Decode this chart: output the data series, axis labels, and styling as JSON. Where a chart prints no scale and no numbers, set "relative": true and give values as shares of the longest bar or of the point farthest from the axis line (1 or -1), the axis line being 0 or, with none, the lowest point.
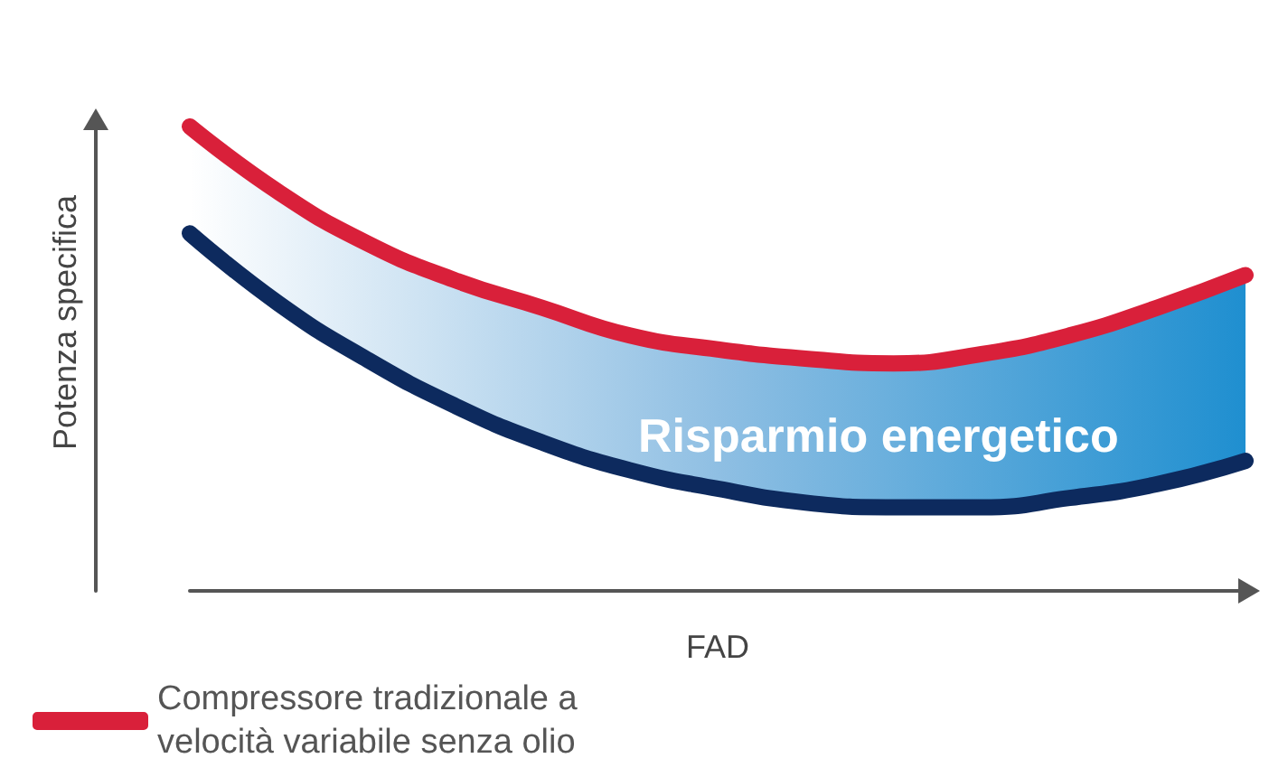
{
  "chart_data": {
    "type": "line",
    "relative": true,
    "xlabel": "FAD",
    "ylabel": "Potenza specifica",
    "categories": [
      null,
      null,
      null,
      null,
      null,
      null,
      null,
      null,
      null,
      null,
      null,
      null,
      null
    ],
    "series": [
      {
        "name": "Compressore tradizionale a velocità variabile senza olio",
        "color": "#d9203a",
        "values": [
          1,
          0.86,
          0.75,
          0.67,
          0.61,
          0.55,
          0.52,
          0.5,
          0.49,
          0.51,
          0.55,
          0.61,
          0.68
        ],
        "lower": [
          0.77,
          0.62,
          0.5,
          0.4,
          0.32,
          0.26,
          0.22,
          0.19,
          0.18,
          0.18,
          0.2,
          0.23,
          0.28
        ],
        "upper": [
          1,
          0.86,
          0.75,
          0.67,
          0.61,
          0.55,
          0.52,
          0.5,
          0.49,
          0.51,
          0.55,
          0.61,
          0.68
        ]
      },
      {
        "color": "#0d2a5e",
        "values": [
          0.77,
          0.62,
          0.5,
          0.4,
          0.32,
          0.26,
          0.22,
          0.19,
          0.18,
          0.18,
          0.2,
          0.23,
          0.28
        ]
      }
    ],
    "annotations": [
      "Risparmio energetico"
    ],
    "legend": "bottom left",
    "grid": false,
    "line_style": "solid"
  }
}
